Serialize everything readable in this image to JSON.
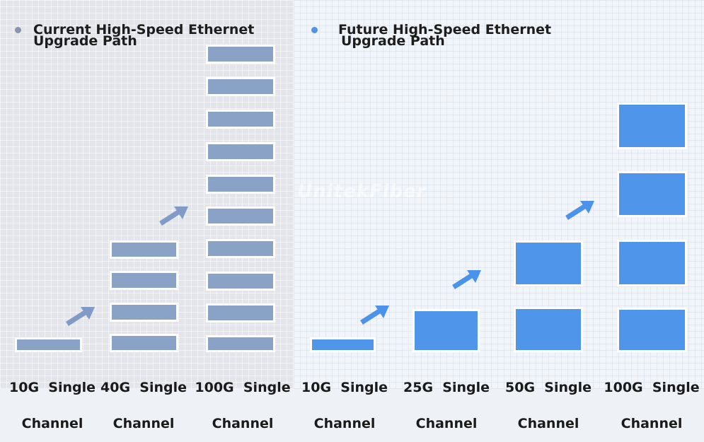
{
  "left": {
    "heading_line1": "Current High-Speed Ethernet",
    "heading_line2": "Upgrade Path",
    "labels": [
      {
        "line1": "10G  Single",
        "line2": "Channel"
      },
      {
        "line1": "40G  Single",
        "line2": "Channel"
      },
      {
        "line1": "100G  Single",
        "line2": "Channel"
      }
    ]
  },
  "right": {
    "heading_line1": "Future High-Speed Ethernet",
    "heading_line2": "Upgrade Path",
    "labels": [
      {
        "line1": "10G  Single",
        "line2": "Channel"
      },
      {
        "line1": "25G  Single",
        "line2": "Channel"
      },
      {
        "line1": "50G  Single",
        "line2": "Channel"
      },
      {
        "line1": "100G  Single",
        "line2": "Channel"
      }
    ]
  },
  "watermark": "UnitekFiber",
  "colors": {
    "current_block": "#8aa2c6",
    "future_block": "#4f95ea",
    "current_arrow": "#7f9bc6",
    "future_arrow": "#4a92ea"
  }
}
